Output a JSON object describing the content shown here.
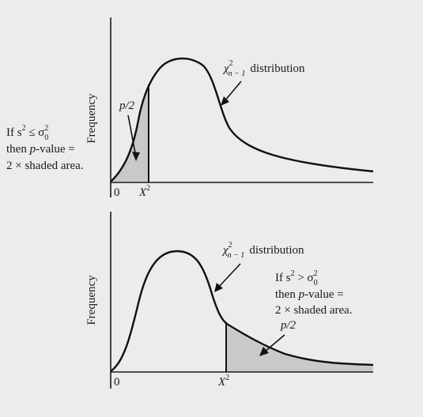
{
  "panels": [
    {
      "ylabel": "Frequency",
      "origin_label": "0",
      "x_label": "X",
      "x_label_sup": "2",
      "dist_label": "distribution",
      "dist_chi": "χ",
      "dist_sup": "2",
      "dist_sub": "n − 1",
      "half_p": "p/2",
      "note": {
        "line1_pre": "If s",
        "line1_sup": "2",
        "line1_rel": " ≤ σ",
        "line1_sup2": "2",
        "line1_sub2": "0",
        "line2_pre": "then ",
        "line2_p": "p",
        "line2_post": "-value =",
        "line3": "2 × shaded area."
      }
    },
    {
      "ylabel": "Frequency",
      "origin_label": "0",
      "x_label": "X",
      "x_label_sup": "2",
      "dist_label": "distribution",
      "dist_chi": "χ",
      "dist_sup": "2",
      "dist_sub": "n − 1",
      "half_p": "p/2",
      "note": {
        "line1_pre": "If s",
        "line1_sup": "2",
        "line1_rel": " > σ",
        "line1_sup2": "2",
        "line1_sub2": "0",
        "line2_pre": "then ",
        "line2_p": "p",
        "line2_post": "-value =",
        "line3": "2 × shaded area."
      }
    }
  ],
  "colors": {
    "shade": "#c9c9c9",
    "ink": "#111111",
    "background": "#ececec"
  }
}
